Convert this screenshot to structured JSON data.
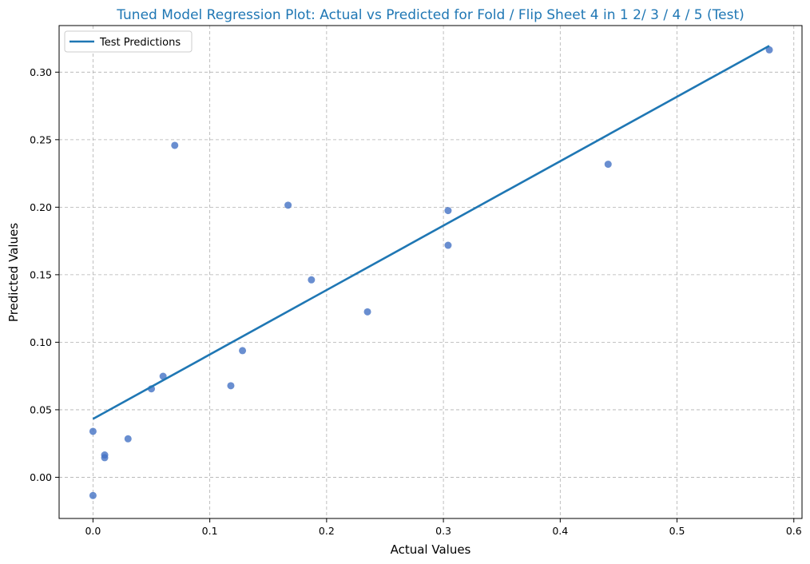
{
  "colors": {
    "title": "#1f77b4",
    "line": "#1f77b4",
    "points": "#4472c4",
    "grid": "#b0b0b0"
  },
  "chart_data": {
    "type": "scatter",
    "title": "Tuned Model Regression Plot: Actual vs Predicted for Fold / Flip Sheet 4 in 1 2/ 3 / 4 / 5 (Test)",
    "xlabel": "Actual Values",
    "ylabel": "Predicted Values",
    "xlim": [
      -0.029,
      0.607
    ],
    "ylim": [
      -0.0305,
      0.3345
    ],
    "xticks": [
      0.0,
      0.1,
      0.2,
      0.3,
      0.4,
      0.5,
      0.6
    ],
    "xtick_labels": [
      "0.0",
      "0.1",
      "0.2",
      "0.3",
      "0.4",
      "0.5",
      "0.6"
    ],
    "yticks": [
      0.0,
      0.05,
      0.1,
      0.15,
      0.2,
      0.25,
      0.3
    ],
    "ytick_labels": [
      "0.00",
      "0.05",
      "0.10",
      "0.15",
      "0.20",
      "0.25",
      "0.30"
    ],
    "grid": true,
    "legend_position": "top-left",
    "legend": [
      "Test Predictions"
    ],
    "points": [
      {
        "x": 0.0,
        "y": 0.034
      },
      {
        "x": 0.0,
        "y": -0.0135
      },
      {
        "x": 0.01,
        "y": 0.0165
      },
      {
        "x": 0.01,
        "y": 0.0145
      },
      {
        "x": 0.03,
        "y": 0.0285
      },
      {
        "x": 0.05,
        "y": 0.0655
      },
      {
        "x": 0.06,
        "y": 0.0748
      },
      {
        "x": 0.07,
        "y": 0.2458
      },
      {
        "x": 0.118,
        "y": 0.0678
      },
      {
        "x": 0.128,
        "y": 0.0938
      },
      {
        "x": 0.167,
        "y": 0.2015
      },
      {
        "x": 0.187,
        "y": 0.1462
      },
      {
        "x": 0.235,
        "y": 0.1225
      },
      {
        "x": 0.304,
        "y": 0.1975
      },
      {
        "x": 0.304,
        "y": 0.1718
      },
      {
        "x": 0.441,
        "y": 0.2318
      },
      {
        "x": 0.579,
        "y": 0.3165
      }
    ],
    "regression_line": {
      "name": "Test Predictions",
      "x": [
        0.0,
        0.579
      ],
      "y": [
        0.0432,
        0.3195
      ]
    }
  }
}
